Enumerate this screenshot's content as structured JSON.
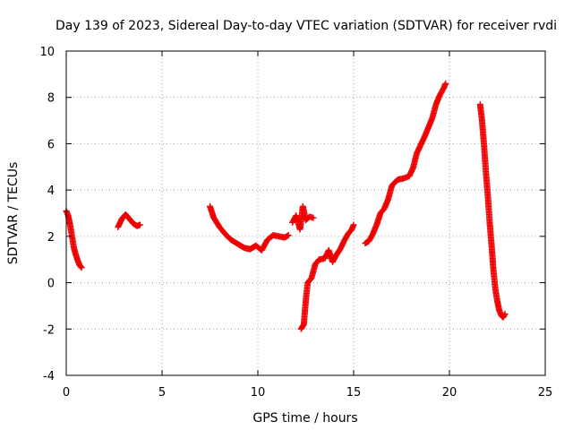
{
  "chart_data": {
    "type": "scatter",
    "title": "Day 139 of 2023, Sidereal Day-to-day VTEC variation (SDTVAR) for receiver rvdi",
    "xlabel": "GPS time / hours",
    "ylabel": "SDTVAR / TECUs",
    "xlim": [
      0,
      25
    ],
    "ylim": [
      -4,
      10
    ],
    "xticks": [
      0,
      5,
      10,
      15,
      20,
      25
    ],
    "yticks": [
      -4,
      -2,
      0,
      2,
      4,
      6,
      8,
      10
    ],
    "grid": true,
    "marker": "plus",
    "color": "#ee0000",
    "series": [
      {
        "name": "seg1",
        "x": [
          0.0,
          0.1,
          0.2,
          0.3,
          0.4,
          0.5,
          0.6,
          0.7,
          0.8
        ],
        "y": [
          3.1,
          2.9,
          2.5,
          2.0,
          1.5,
          1.2,
          0.95,
          0.75,
          0.65
        ]
      },
      {
        "name": "seg2",
        "x": [
          2.7,
          2.9,
          3.1,
          3.3,
          3.5,
          3.7,
          3.85
        ],
        "y": [
          2.4,
          2.75,
          2.95,
          2.75,
          2.55,
          2.45,
          2.5
        ]
      },
      {
        "name": "seg3",
        "x": [
          7.5,
          7.7,
          8.0,
          8.3,
          8.6,
          9.0,
          9.3,
          9.6,
          9.9,
          10.2,
          10.5,
          10.8,
          11.1,
          11.4,
          11.6
        ],
        "y": [
          3.3,
          2.8,
          2.4,
          2.1,
          1.85,
          1.65,
          1.5,
          1.45,
          1.6,
          1.4,
          1.85,
          2.05,
          2.0,
          1.95,
          2.05
        ]
      },
      {
        "name": "seg4",
        "x": [
          11.8,
          12.0,
          12.2,
          12.35,
          12.5,
          12.7,
          12.9
        ],
        "y": [
          2.6,
          2.9,
          2.3,
          3.3,
          2.7,
          2.85,
          2.8
        ]
      },
      {
        "name": "seg5",
        "x": [
          12.25,
          12.4,
          12.5,
          12.6,
          12.8,
          13.0,
          13.2,
          13.5,
          13.7,
          13.9,
          14.1,
          14.3,
          14.5,
          14.7,
          14.9,
          15.0
        ],
        "y": [
          -2.0,
          -1.8,
          -0.8,
          0.0,
          0.2,
          0.8,
          1.0,
          1.05,
          1.4,
          0.9,
          1.2,
          1.45,
          1.8,
          2.1,
          2.3,
          2.5
        ]
      },
      {
        "name": "seg6",
        "x": [
          15.6,
          15.8,
          16.0,
          16.2,
          16.4,
          16.6,
          16.8,
          17.0,
          17.3,
          17.6,
          17.9,
          18.1,
          18.3,
          18.5,
          18.7,
          18.9,
          19.1,
          19.3,
          19.5,
          19.7,
          19.8
        ],
        "y": [
          1.7,
          1.8,
          2.1,
          2.5,
          3.0,
          3.2,
          3.6,
          4.2,
          4.45,
          4.5,
          4.6,
          4.95,
          5.6,
          5.95,
          6.3,
          6.7,
          7.1,
          7.7,
          8.1,
          8.4,
          8.6
        ]
      },
      {
        "name": "seg7",
        "x": [
          21.6,
          21.7,
          21.8,
          21.9,
          22.0,
          22.1,
          22.2,
          22.3,
          22.4,
          22.5,
          22.6,
          22.7,
          22.8,
          22.9
        ],
        "y": [
          7.7,
          7.0,
          6.0,
          4.8,
          3.8,
          2.6,
          1.6,
          0.5,
          -0.3,
          -0.8,
          -1.2,
          -1.4,
          -1.5,
          -1.35
        ]
      }
    ]
  }
}
